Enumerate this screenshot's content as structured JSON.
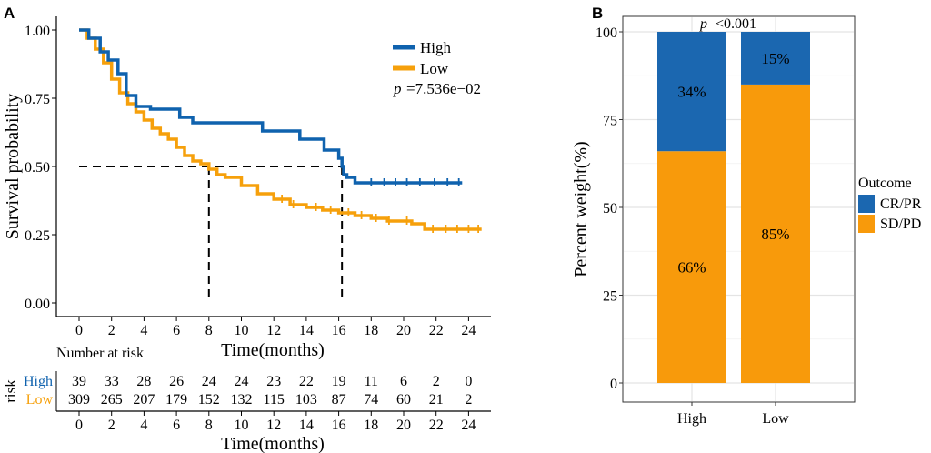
{
  "colors": {
    "high": "#0f62ae",
    "low": "#f6a00b",
    "bar_blue": "#1b67b0",
    "bar_orange": "#f89a0b",
    "panel_bg": "#ffffff",
    "grid": "#e4e4e4",
    "text": "#000000",
    "low_text": "#f6a00b",
    "high_text": "#0f62ae"
  },
  "panel_a": {
    "label": "A",
    "number_at_risk_title": "Number at risk",
    "risk_axis_label": "risk"
  },
  "panel_b": {
    "label": "B"
  },
  "chart_data": [
    {
      "type": "line",
      "subtype": "kaplan-meier",
      "title": "",
      "xlabel": "Time(months)",
      "ylabel": "Survival probability",
      "xlim": [
        0,
        25
      ],
      "ylim": [
        0,
        1
      ],
      "xticks": [
        0,
        2,
        4,
        6,
        8,
        10,
        12,
        14,
        16,
        18,
        20,
        22,
        24
      ],
      "yticks": [
        "0.00",
        "0.25",
        "0.50",
        "0.75",
        "1.00"
      ],
      "legend": [
        "High",
        "Low"
      ],
      "p_label": "p",
      "p_value": "=7.536e−02",
      "median_survival": {
        "Low": 8.0,
        "High": 16.2,
        "probability": 0.5
      },
      "series": [
        {
          "name": "High",
          "x": [
            0,
            0.4,
            0.6,
            1.0,
            1.3,
            1.6,
            1.8,
            2.1,
            2.4,
            2.6,
            2.9,
            3.2,
            3.5,
            4.0,
            4.4,
            4.8,
            5.2,
            5.6,
            6.2,
            6.6,
            7.0,
            7.8,
            9.2,
            11.3,
            12.8,
            13.6,
            14.4,
            15.1,
            15.8,
            16.0,
            16.2,
            16.3,
            16.5,
            16.9,
            17.0,
            23.6
          ],
          "y": [
            1.0,
            1.0,
            0.97,
            0.97,
            0.92,
            0.92,
            0.89,
            0.89,
            0.84,
            0.84,
            0.76,
            0.76,
            0.72,
            0.72,
            0.71,
            0.71,
            0.71,
            0.71,
            0.68,
            0.68,
            0.66,
            0.66,
            0.66,
            0.63,
            0.63,
            0.6,
            0.6,
            0.56,
            0.56,
            0.53,
            0.5,
            0.47,
            0.46,
            0.46,
            0.44,
            0.44
          ],
          "censored": [
            18.0,
            18.8,
            19.5,
            20.2,
            21.0,
            21.9,
            22.7,
            23.4
          ]
        },
        {
          "name": "Low",
          "x": [
            0,
            0.5,
            1.0,
            1.5,
            2.0,
            2.5,
            3.0,
            3.5,
            4.0,
            4.5,
            5.0,
            5.5,
            6.0,
            6.5,
            7.0,
            7.5,
            8.0,
            8.5,
            9.0,
            10.0,
            11.0,
            12.0,
            13.0,
            14.0,
            15.0,
            16.0,
            17.0,
            18.0,
            19.0,
            20.0,
            20.5,
            21.0,
            21.3,
            22.0,
            23.0,
            24.0,
            24.8
          ],
          "y": [
            1.0,
            0.97,
            0.93,
            0.88,
            0.82,
            0.77,
            0.73,
            0.7,
            0.67,
            0.64,
            0.62,
            0.6,
            0.57,
            0.54,
            0.52,
            0.51,
            0.49,
            0.47,
            0.46,
            0.43,
            0.4,
            0.38,
            0.36,
            0.35,
            0.34,
            0.33,
            0.32,
            0.31,
            0.3,
            0.3,
            0.29,
            0.29,
            0.27,
            0.27,
            0.27,
            0.27,
            0.27
          ],
          "censored": [
            12.5,
            13.2,
            14.6,
            15.5,
            16.6,
            17.4,
            18.3,
            19.1,
            20.2,
            21.8,
            22.6,
            23.3,
            24.0,
            24.6
          ]
        }
      ],
      "risk_table": {
        "title": "Number at risk",
        "xlabel": "Time(months)",
        "times": [
          0,
          2,
          4,
          6,
          8,
          10,
          12,
          14,
          16,
          18,
          20,
          22,
          24
        ],
        "rows": [
          {
            "label": "High",
            "counts": [
              "39",
              "33",
              "28",
              "26",
              "24",
              "24",
              "23",
              "22",
              "19",
              "11",
              "6",
              "2",
              "0"
            ]
          },
          {
            "label": "Low",
            "counts": [
              "309",
              "265",
              "207",
              "179",
              "152",
              "132",
              "115",
              "103",
              "87",
              "74",
              "60",
              "21",
              "2"
            ]
          }
        ]
      }
    },
    {
      "type": "bar",
      "subtype": "stacked-100",
      "title": "",
      "xlabel": "",
      "ylabel": "Percent weight(%)",
      "ylim": [
        0,
        100
      ],
      "yticks": [
        0,
        25,
        50,
        75,
        100
      ],
      "grid": true,
      "categories": [
        "High",
        "Low"
      ],
      "p_label": "p",
      "p_value": "<0.001",
      "legend_title": "Outcome",
      "series": [
        {
          "name": "SD/PD",
          "values": [
            66,
            85
          ],
          "labels": [
            "66%",
            "85%"
          ]
        },
        {
          "name": "CR/PR",
          "values": [
            34,
            15
          ],
          "labels": [
            "34%",
            "15%"
          ]
        }
      ]
    }
  ]
}
